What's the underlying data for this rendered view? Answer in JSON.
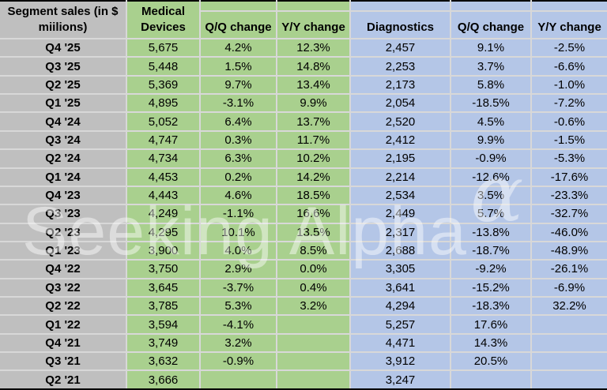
{
  "chart_data": {
    "type": "table",
    "title": "Segment sales (in $ miilions)",
    "column_headers": [
      "Segment sales (in $ miilions)",
      "Medical Devices",
      "Q/Q change",
      "Y/Y change",
      "Diagnostics",
      "Q/Q change",
      "Y/Y change"
    ],
    "rows": [
      [
        "Q4 '25",
        "5,675",
        "4.2%",
        "12.3%",
        "2,457",
        "9.1%",
        "-2.5%"
      ],
      [
        "Q3 '25",
        "5,448",
        "1.5%",
        "14.8%",
        "2,253",
        "3.7%",
        "-6.6%"
      ],
      [
        "Q2 '25",
        "5,369",
        "9.7%",
        "13.4%",
        "2,173",
        "5.8%",
        "-1.0%"
      ],
      [
        "Q1 '25",
        "4,895",
        "-3.1%",
        "9.9%",
        "2,054",
        "-18.5%",
        "-7.2%"
      ],
      [
        "Q4 '24",
        "5,052",
        "6.4%",
        "13.7%",
        "2,520",
        "4.5%",
        "-0.6%"
      ],
      [
        "Q3 '24",
        "4,747",
        "0.3%",
        "11.7%",
        "2,412",
        "9.9%",
        "-1.5%"
      ],
      [
        "Q2 '24",
        "4,734",
        "6.3%",
        "10.2%",
        "2,195",
        "-0.9%",
        "-5.3%"
      ],
      [
        "Q1 '24",
        "4,453",
        "0.2%",
        "14.2%",
        "2,214",
        "-12.6%",
        "-17.6%"
      ],
      [
        "Q4 '23",
        "4,443",
        "4.6%",
        "18.5%",
        "2,534",
        "3.5%",
        "-23.3%"
      ],
      [
        "Q3 '23",
        "4,249",
        "-1.1%",
        "16.6%",
        "2,449",
        "5.7%",
        "-32.7%"
      ],
      [
        "Q2 '23",
        "4,295",
        "10.1%",
        "13.5%",
        "2,317",
        "-13.8%",
        "-46.0%"
      ],
      [
        "Q1 '23",
        "3,900",
        "4.0%",
        "8.5%",
        "2,688",
        "-18.7%",
        "-48.9%"
      ],
      [
        "Q4 '22",
        "3,750",
        "2.9%",
        "0.0%",
        "3,305",
        "-9.2%",
        "-26.1%"
      ],
      [
        "Q3 '22",
        "3,645",
        "-3.7%",
        "0.4%",
        "3,641",
        "-15.2%",
        "-6.9%"
      ],
      [
        "Q2 '22",
        "3,785",
        "5.3%",
        "3.2%",
        "4,294",
        "-18.3%",
        "32.2%"
      ],
      [
        "Q1 '22",
        "3,594",
        "-4.1%",
        "",
        "5,257",
        "17.6%",
        ""
      ],
      [
        "Q4 '21",
        "3,749",
        "3.2%",
        "",
        "4,471",
        "14.3%",
        ""
      ],
      [
        "Q3 '21",
        "3,632",
        "-0.9%",
        "",
        "3,912",
        "20.5%",
        ""
      ],
      [
        "Q2 '21",
        "3,666",
        "",
        "",
        "3,247",
        "",
        ""
      ]
    ]
  },
  "header": {
    "corner_line1": "Segment sales (in $",
    "corner_line2": "miilions)",
    "medical_line1": "Medical",
    "medical_line2": "Devices",
    "medical_qq": "Q/Q change",
    "medical_yy": "Y/Y change",
    "diagnostics": "Diagnostics",
    "diagnostics_qq": "Q/Q change",
    "diagnostics_yy": "Y/Y change"
  },
  "watermark": {
    "text": "Seeking Alpha",
    "alpha_symbol": "α"
  },
  "colors": {
    "quarter_column_bg": "#bfbfbf",
    "medical_devices_bg": "#a9d08e",
    "diagnostics_bg": "#b4c6e7",
    "gridline": "#d8d8d8",
    "outer_border": "#000000",
    "text": "#000000",
    "watermark": "rgba(255,255,255,0.45)"
  }
}
